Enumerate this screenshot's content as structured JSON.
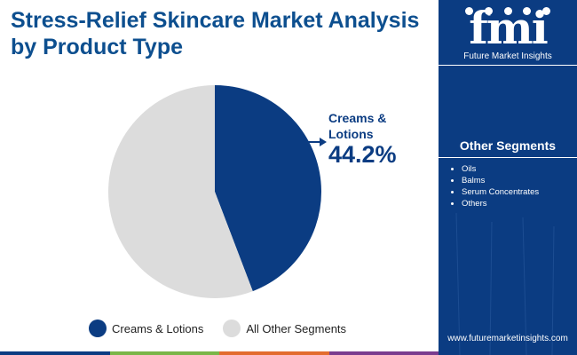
{
  "title": "Stress-Relief Skincare Market Analysis by Product Type",
  "brand": {
    "name": "fmi",
    "tagline": "Future Market Insights",
    "website": "www.futuremarketinsights.com"
  },
  "other_segments": {
    "heading": "Other Segments",
    "items": [
      "Oils",
      "Balms",
      "Serum Concentrates",
      "Others"
    ]
  },
  "callout": {
    "label": "Creams & Lotions",
    "value": "44.2%"
  },
  "colors": {
    "primary": "#0b3c82",
    "secondary": "#dcdcdc",
    "title": "#0d4f8f"
  },
  "chart_data": {
    "type": "pie",
    "title": "Stress-Relief Skincare Market Analysis by Product Type",
    "slices": [
      {
        "label": "Creams & Lotions",
        "value": 44.2,
        "color": "#0b3c82"
      },
      {
        "label": "All Other Segments",
        "value": 55.8,
        "color": "#dcdcdc"
      }
    ],
    "legend": [
      "Creams & Lotions",
      "All Other Segments"
    ],
    "legend_position": "bottom"
  }
}
